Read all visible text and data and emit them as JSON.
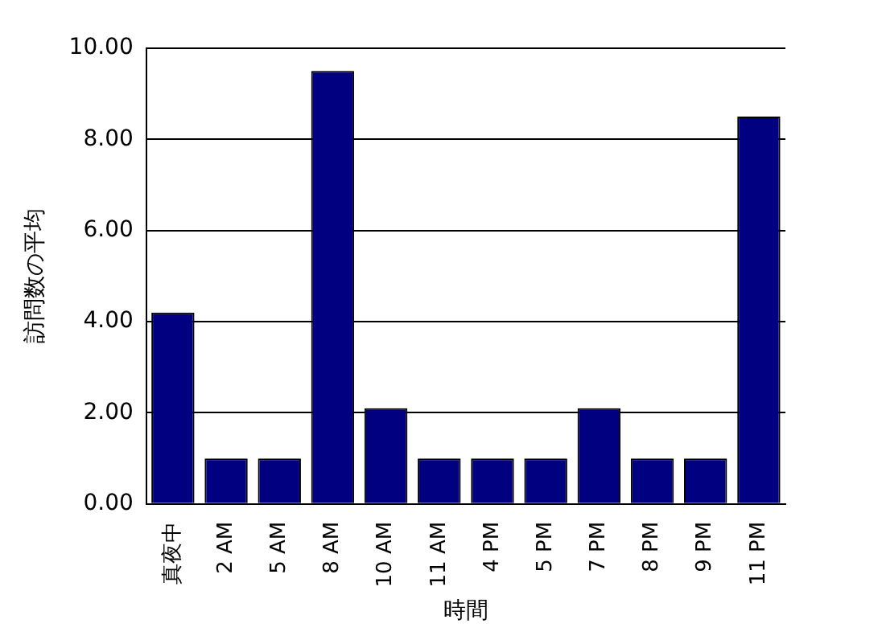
{
  "chart_data": {
    "type": "bar",
    "xlabel": "時間",
    "ylabel": "訪問数の平均",
    "categories": [
      "真夜中",
      "2 AM",
      "5 AM",
      "8 AM",
      "10 AM",
      "11 AM",
      "4 PM",
      "5 PM",
      "7 PM",
      "8 PM",
      "9 PM",
      "11 PM"
    ],
    "values": [
      4.2,
      1,
      1,
      9.5,
      2.1,
      1,
      1,
      1,
      2.1,
      1,
      1,
      8.5
    ],
    "color": "#000080",
    "ylim": [
      0,
      10
    ],
    "yticks": [
      {
        "value": 0,
        "label": "0.00"
      },
      {
        "value": 2,
        "label": "2.00"
      },
      {
        "value": 4,
        "label": "4.00"
      },
      {
        "value": 6,
        "label": "6.00"
      },
      {
        "value": 8,
        "label": "8.00"
      },
      {
        "value": 10,
        "label": "10.00"
      }
    ],
    "grid": "y",
    "legend": false
  }
}
